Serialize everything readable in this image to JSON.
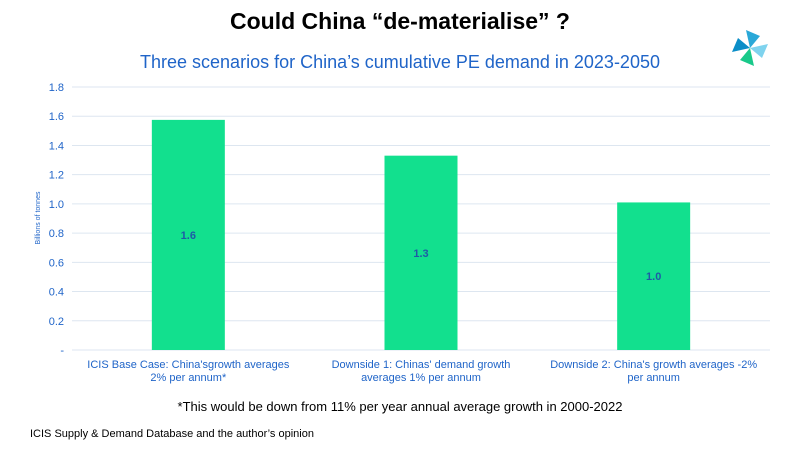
{
  "title": "Could China “de-materialise” ?",
  "subtitle": "Three scenarios for China’s cumulative PE demand in 2023-2050",
  "footnote": "*This would be down from 11% per year annual average growth in 2000-2022",
  "source": "ICIS Supply  & Demand Database and the author’s opinion",
  "logo_icon": "icis-pinwheel-logo-icon",
  "colors": {
    "bar": "#12e08e",
    "text_blue": "#1f64c8",
    "data_label": "#1f5aa6",
    "grid": "#dde6f0",
    "logo_colors": [
      "#2aa8d8",
      "#7fd3ee",
      "#19c98a",
      "#0b8ec8"
    ]
  },
  "chart_data": {
    "type": "bar",
    "title": "Three scenarios for China’s cumulative PE demand in 2023-2050",
    "xlabel": "",
    "ylabel": "Billions of tonnes",
    "ylim": [
      0,
      1.8
    ],
    "yticks": [
      "-",
      "0.2",
      "0.4",
      "0.6",
      "0.8",
      "1.0",
      "1.2",
      "1.4",
      "1.6",
      "1.8"
    ],
    "grid": true,
    "categories": [
      [
        "ICIS Base Case: China'sgrowth averages",
        "2% per annum*"
      ],
      [
        "Downside 1: Chinas' demand growth",
        "averages 1% per annum"
      ],
      [
        "Downside 2: China's growth averages -2%",
        "per annum"
      ]
    ],
    "values": [
      1.575,
      1.33,
      1.01
    ],
    "data_labels": [
      "1.6",
      "1.3",
      "1.0"
    ]
  }
}
